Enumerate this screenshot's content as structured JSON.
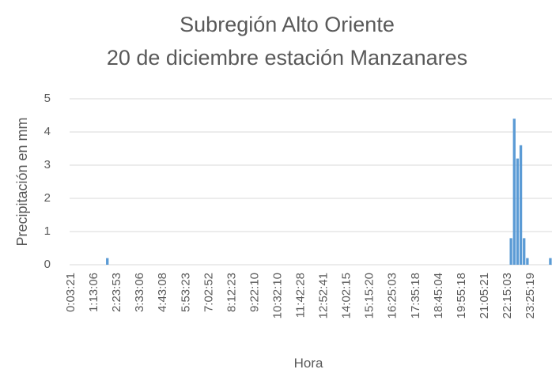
{
  "chart_data": {
    "type": "bar",
    "title": "Subregión Alto Oriente",
    "subtitle": "20 de diciembre estación Manzanares",
    "x_label": "Hora",
    "y_label": "Precipitación en mm",
    "color": "#5b9bd5",
    "grid": true,
    "ylim": [
      0,
      5
    ],
    "yticks": [
      0,
      1,
      2,
      3,
      4,
      5
    ],
    "categories": [
      "0:03:21",
      null,
      null,
      null,
      null,
      null,
      null,
      "1:13:06",
      null,
      null,
      null,
      null,
      null,
      null,
      "2:23:53",
      null,
      null,
      null,
      null,
      null,
      null,
      "3:33:06",
      null,
      null,
      null,
      null,
      null,
      null,
      "4:43:08",
      null,
      null,
      null,
      null,
      null,
      null,
      "5:53:23",
      null,
      null,
      null,
      null,
      null,
      null,
      "7:02:52",
      null,
      null,
      null,
      null,
      null,
      null,
      "8:12:23",
      null,
      null,
      null,
      null,
      null,
      null,
      "9:22:10",
      null,
      null,
      null,
      null,
      null,
      null,
      "10:32:10",
      null,
      null,
      null,
      null,
      null,
      null,
      "11:42:28",
      null,
      null,
      null,
      null,
      null,
      null,
      "12:52:41",
      null,
      null,
      null,
      null,
      null,
      null,
      "14:02:15",
      null,
      null,
      null,
      null,
      null,
      null,
      "15:15:20",
      null,
      null,
      null,
      null,
      null,
      null,
      "16:25:03",
      null,
      null,
      null,
      null,
      null,
      null,
      "17:35:18",
      null,
      null,
      null,
      null,
      null,
      null,
      "18:45:04",
      null,
      null,
      null,
      null,
      null,
      null,
      "19:55:18",
      null,
      null,
      null,
      null,
      null,
      null,
      "21:05:21",
      null,
      null,
      null,
      null,
      null,
      null,
      "22:15:03",
      null,
      null,
      null,
      null,
      null,
      null,
      "23:25:19",
      null,
      null,
      null,
      null,
      null,
      null
    ],
    "values": [
      0,
      0,
      0,
      0,
      0,
      0,
      0,
      0,
      0,
      0,
      0,
      0.2,
      0,
      0,
      0,
      0,
      0,
      0,
      0,
      0,
      0,
      0,
      0,
      0,
      0,
      0,
      0,
      0,
      0,
      0,
      0,
      0,
      0,
      0,
      0,
      0,
      0,
      0,
      0,
      0,
      0,
      0,
      0,
      0,
      0,
      0,
      0,
      0,
      0,
      0,
      0,
      0,
      0,
      0,
      0,
      0,
      0,
      0,
      0,
      0,
      0,
      0,
      0,
      0,
      0,
      0,
      0,
      0,
      0,
      0,
      0,
      0,
      0,
      0,
      0,
      0,
      0,
      0,
      0,
      0,
      0,
      0,
      0,
      0,
      0,
      0,
      0,
      0,
      0,
      0,
      0,
      0,
      0,
      0,
      0,
      0,
      0,
      0,
      0,
      0,
      0,
      0,
      0,
      0,
      0,
      0,
      0,
      0,
      0,
      0,
      0,
      0,
      0,
      0,
      0,
      0,
      0,
      0,
      0,
      0,
      0,
      0,
      0,
      0,
      0,
      0,
      0,
      0,
      0,
      0,
      0,
      0,
      0,
      0,
      0.8,
      4.4,
      3.2,
      3.6,
      0.8,
      0.2,
      0,
      0,
      0,
      0,
      0,
      0,
      0.2
    ]
  }
}
